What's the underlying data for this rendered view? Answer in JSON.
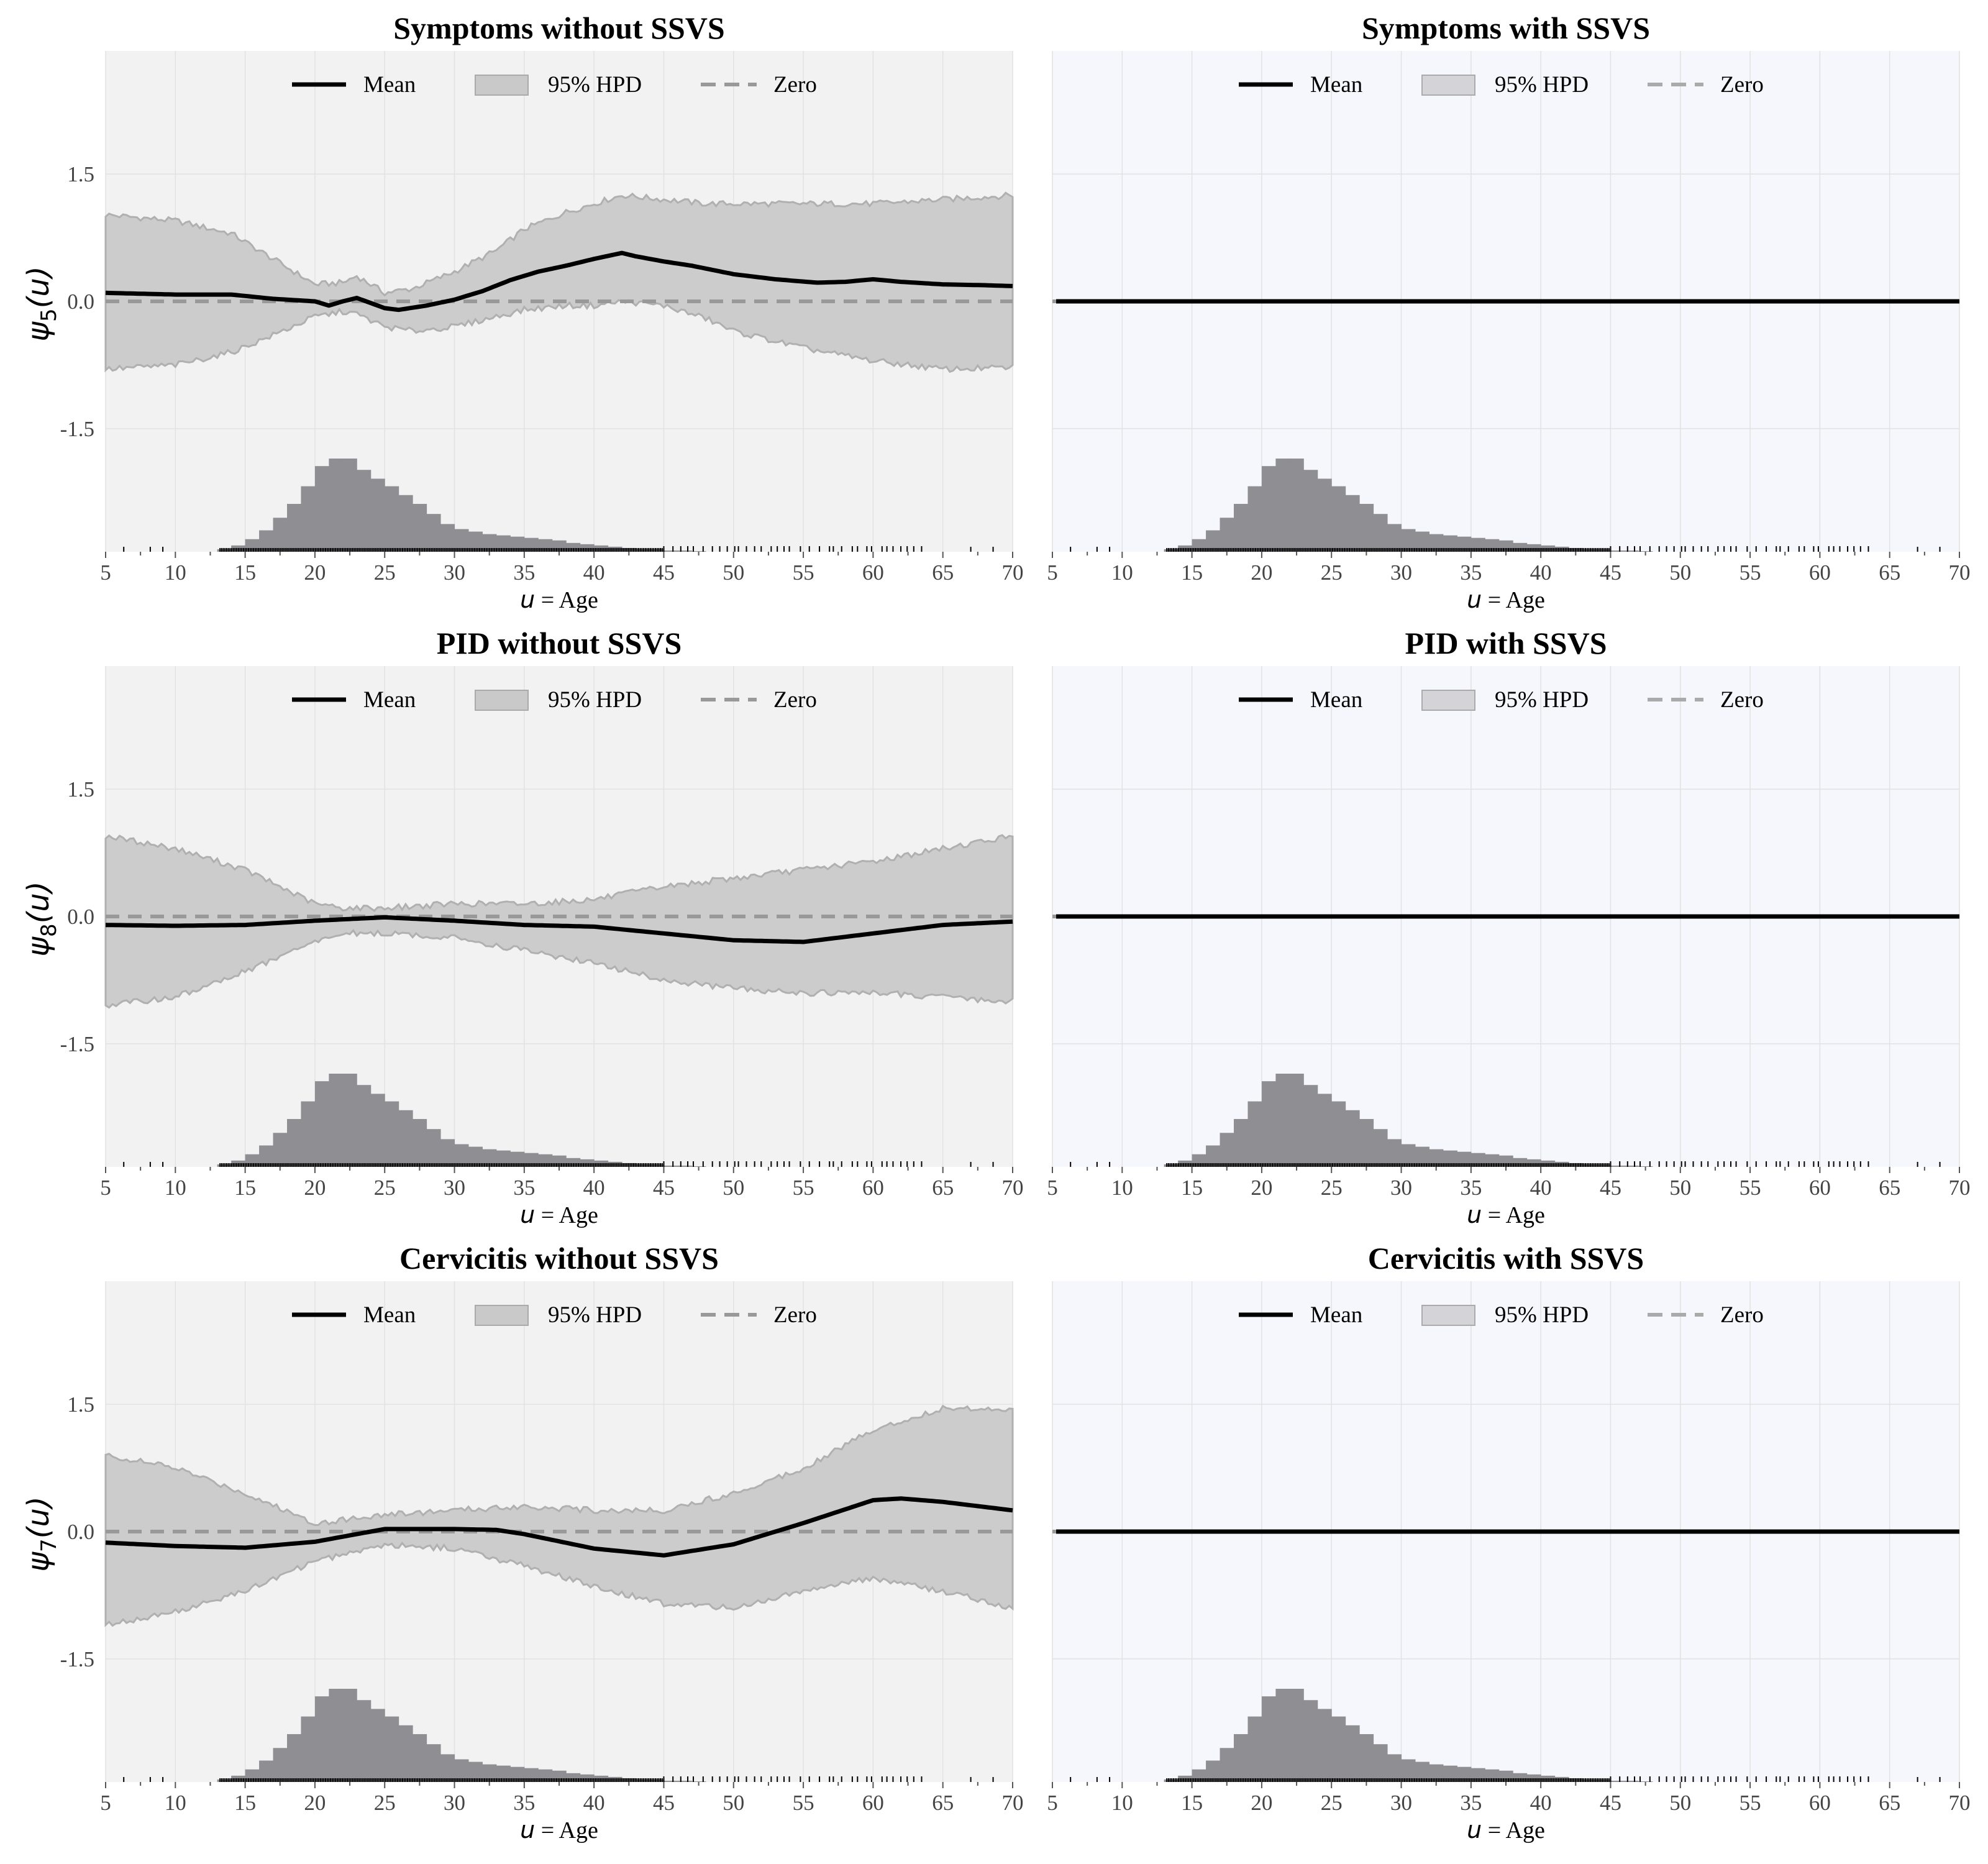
{
  "figure": {
    "layout": "3 rows x 2 columns",
    "grid": true,
    "legend_placement": "top-center",
    "colors": {
      "panel_bg_without": "#f2f2f2",
      "panel_bg_with": "#f6f7fd",
      "band": "#cccccc",
      "band_edge": "#b0b0b0",
      "mean": "#000000",
      "zero": "#999999",
      "histogram": "#8e8e93",
      "rug": "#000000"
    }
  },
  "chart_data": [
    {
      "type": "line",
      "title": "Symptoms without SSVS",
      "ylabel": "ψ5(u)",
      "ylabel_main": "ψ",
      "ylabel_sub": "5",
      "ylabel_arg": "(u)",
      "xlabel_var": "u",
      "xlabel_rest": " = Age",
      "xlim": [
        5,
        70
      ],
      "ylim": [
        -2.95,
        2.95
      ],
      "xticks": [
        "5",
        "10",
        "15",
        "20",
        "25",
        "30",
        "35",
        "40",
        "45",
        "50",
        "55",
        "60",
        "65",
        "70"
      ],
      "yticks": [
        "1.5",
        "0.0",
        "-1.5"
      ],
      "legend": [
        "Mean",
        "95% HPD",
        "Zero"
      ],
      "series": [
        {
          "name": "Mean",
          "x": [
            5,
            10,
            14,
            17,
            19,
            20,
            21,
            22,
            23,
            24,
            25,
            26,
            28,
            30,
            32,
            34,
            36,
            38,
            40,
            42,
            43,
            45,
            47,
            50,
            53,
            56,
            58,
            60,
            62,
            65,
            68,
            70
          ],
          "y": [
            0.1,
            0.08,
            0.08,
            0.03,
            0.01,
            0.0,
            -0.05,
            0.0,
            0.04,
            -0.02,
            -0.08,
            -0.1,
            -0.05,
            0.02,
            0.12,
            0.25,
            0.35,
            0.42,
            0.5,
            0.57,
            0.53,
            0.47,
            0.42,
            0.32,
            0.26,
            0.22,
            0.23,
            0.26,
            0.23,
            0.2,
            0.19,
            0.18
          ]
        },
        {
          "name": "95% HPD",
          "x": [
            5,
            10,
            14,
            17,
            20,
            22,
            23,
            25,
            27,
            30,
            33,
            35,
            38,
            40,
            42,
            45,
            48,
            50,
            55,
            60,
            65,
            70
          ],
          "lower": [
            -0.8,
            -0.75,
            -0.6,
            -0.4,
            -0.18,
            -0.12,
            -0.15,
            -0.3,
            -0.35,
            -0.3,
            -0.18,
            -0.1,
            -0.05,
            -0.05,
            0.0,
            -0.05,
            -0.2,
            -0.35,
            -0.55,
            -0.7,
            -0.8,
            -0.78
          ],
          "upper": [
            1.02,
            0.95,
            0.8,
            0.5,
            0.2,
            0.22,
            0.3,
            0.1,
            0.15,
            0.35,
            0.6,
            0.85,
            1.05,
            1.15,
            1.25,
            1.2,
            1.15,
            1.15,
            1.15,
            1.15,
            1.2,
            1.25
          ]
        },
        {
          "name": "Zero",
          "y": 0
        }
      ],
      "histogram": {
        "x_start": 13,
        "bin_width": 1,
        "heights": [
          0.02,
          0.05,
          0.1,
          0.17,
          0.27,
          0.38,
          0.52,
          0.68,
          0.74,
          0.74,
          0.65,
          0.58,
          0.52,
          0.45,
          0.38,
          0.3,
          0.22,
          0.18,
          0.16,
          0.14,
          0.13,
          0.12,
          0.11,
          0.1,
          0.09,
          0.07,
          0.06,
          0.05,
          0.04,
          0.03,
          0.02,
          0.02,
          0.01,
          0.01,
          0.005
        ]
      }
    },
    {
      "type": "line",
      "title": "Symptoms with SSVS",
      "xlabel_var": "u",
      "xlabel_rest": " = Age",
      "xlim": [
        5,
        70
      ],
      "ylim": [
        -2.95,
        2.95
      ],
      "xticks": [
        "5",
        "10",
        "15",
        "20",
        "25",
        "30",
        "35",
        "40",
        "45",
        "50",
        "55",
        "60",
        "65",
        "70"
      ],
      "yticks": [],
      "legend": [
        "Mean",
        "95% HPD",
        "Zero"
      ],
      "series": [
        {
          "name": "Mean",
          "x": [
            5,
            70
          ],
          "y": [
            0,
            0
          ]
        },
        {
          "name": "95% HPD",
          "x": [
            5,
            70
          ],
          "lower": [
            0,
            0
          ],
          "upper": [
            0,
            0
          ]
        },
        {
          "name": "Zero",
          "y": 0
        }
      ],
      "histogram": {
        "x_start": 13,
        "bin_width": 1,
        "heights": [
          0.02,
          0.05,
          0.1,
          0.17,
          0.27,
          0.38,
          0.52,
          0.68,
          0.74,
          0.74,
          0.65,
          0.58,
          0.52,
          0.45,
          0.38,
          0.3,
          0.22,
          0.18,
          0.16,
          0.14,
          0.13,
          0.12,
          0.11,
          0.1,
          0.09,
          0.07,
          0.06,
          0.05,
          0.04,
          0.03,
          0.02,
          0.02,
          0.01,
          0.01,
          0.005
        ]
      }
    },
    {
      "type": "line",
      "title": "PID without SSVS",
      "ylabel": "ψ8(u)",
      "ylabel_main": "ψ",
      "ylabel_sub": "8",
      "ylabel_arg": "(u)",
      "xlabel_var": "u",
      "xlabel_rest": " = Age",
      "xlim": [
        5,
        70
      ],
      "ylim": [
        -2.95,
        2.95
      ],
      "xticks": [
        "5",
        "10",
        "15",
        "20",
        "25",
        "30",
        "35",
        "40",
        "45",
        "50",
        "55",
        "60",
        "65",
        "70"
      ],
      "yticks": [
        "1.5",
        "0.0",
        "-1.5"
      ],
      "legend": [
        "Mean",
        "95% HPD",
        "Zero"
      ],
      "series": [
        {
          "name": "Mean",
          "x": [
            5,
            10,
            15,
            20,
            25,
            30,
            35,
            40,
            45,
            50,
            55,
            60,
            65,
            70
          ],
          "y": [
            -0.1,
            -0.11,
            -0.1,
            -0.05,
            -0.01,
            -0.05,
            -0.1,
            -0.12,
            -0.2,
            -0.28,
            -0.3,
            -0.2,
            -0.1,
            -0.06
          ]
        },
        {
          "name": "95% HPD",
          "x": [
            5,
            10,
            15,
            20,
            22,
            25,
            30,
            35,
            40,
            45,
            50,
            55,
            60,
            65,
            70
          ],
          "lower": [
            -1.05,
            -0.95,
            -0.65,
            -0.3,
            -0.2,
            -0.2,
            -0.25,
            -0.4,
            -0.55,
            -0.75,
            -0.85,
            -0.9,
            -0.9,
            -0.95,
            -1.0
          ],
          "upper": [
            0.95,
            0.8,
            0.55,
            0.15,
            0.1,
            0.1,
            0.15,
            0.15,
            0.2,
            0.35,
            0.45,
            0.55,
            0.65,
            0.8,
            0.95
          ]
        },
        {
          "name": "Zero",
          "y": 0
        }
      ],
      "histogram": {
        "x_start": 13,
        "bin_width": 1,
        "heights": [
          0.02,
          0.05,
          0.1,
          0.17,
          0.27,
          0.38,
          0.52,
          0.68,
          0.74,
          0.74,
          0.65,
          0.58,
          0.52,
          0.45,
          0.38,
          0.3,
          0.22,
          0.18,
          0.16,
          0.14,
          0.13,
          0.12,
          0.11,
          0.1,
          0.09,
          0.07,
          0.06,
          0.05,
          0.04,
          0.03,
          0.02,
          0.02,
          0.01,
          0.01,
          0.005
        ]
      }
    },
    {
      "type": "line",
      "title": "PID with SSVS",
      "xlabel_var": "u",
      "xlabel_rest": " = Age",
      "xlim": [
        5,
        70
      ],
      "ylim": [
        -2.95,
        2.95
      ],
      "xticks": [
        "5",
        "10",
        "15",
        "20",
        "25",
        "30",
        "35",
        "40",
        "45",
        "50",
        "55",
        "60",
        "65",
        "70"
      ],
      "yticks": [],
      "legend": [
        "Mean",
        "95% HPD",
        "Zero"
      ],
      "series": [
        {
          "name": "Mean",
          "x": [
            5,
            70
          ],
          "y": [
            0,
            0
          ]
        },
        {
          "name": "95% HPD",
          "x": [
            5,
            70
          ],
          "lower": [
            0,
            0
          ],
          "upper": [
            0,
            0
          ]
        },
        {
          "name": "Zero",
          "y": 0
        }
      ],
      "histogram": {
        "x_start": 13,
        "bin_width": 1,
        "heights": [
          0.02,
          0.05,
          0.1,
          0.17,
          0.27,
          0.38,
          0.52,
          0.68,
          0.74,
          0.74,
          0.65,
          0.58,
          0.52,
          0.45,
          0.38,
          0.3,
          0.22,
          0.18,
          0.16,
          0.14,
          0.13,
          0.12,
          0.11,
          0.1,
          0.09,
          0.07,
          0.06,
          0.05,
          0.04,
          0.03,
          0.02,
          0.02,
          0.01,
          0.01,
          0.005
        ]
      }
    },
    {
      "type": "line",
      "title": "Cervicitis without SSVS",
      "ylabel": "ψ7(u)",
      "ylabel_main": "ψ",
      "ylabel_sub": "7",
      "ylabel_arg": "(u)",
      "xlabel_var": "u",
      "xlabel_rest": " = Age",
      "xlim": [
        5,
        70
      ],
      "ylim": [
        -2.95,
        2.95
      ],
      "xticks": [
        "5",
        "10",
        "15",
        "20",
        "25",
        "30",
        "35",
        "40",
        "45",
        "50",
        "55",
        "60",
        "65",
        "70"
      ],
      "yticks": [
        "1.5",
        "0.0",
        "-1.5"
      ],
      "legend": [
        "Mean",
        "95% HPD",
        "Zero"
      ],
      "series": [
        {
          "name": "Mean",
          "x": [
            5,
            10,
            15,
            20,
            25,
            30,
            33,
            35,
            40,
            45,
            50,
            55,
            60,
            62,
            65,
            70
          ],
          "y": [
            -0.13,
            -0.17,
            -0.19,
            -0.12,
            0.03,
            0.03,
            0.02,
            -0.03,
            -0.2,
            -0.28,
            -0.15,
            0.1,
            0.37,
            0.39,
            0.35,
            0.25
          ]
        },
        {
          "name": "95% HPD",
          "x": [
            5,
            10,
            15,
            20,
            25,
            30,
            35,
            40,
            45,
            50,
            55,
            60,
            65,
            70
          ],
          "lower": [
            -1.1,
            -0.95,
            -0.7,
            -0.35,
            -0.15,
            -0.2,
            -0.4,
            -0.65,
            -0.85,
            -0.9,
            -0.7,
            -0.55,
            -0.7,
            -0.9
          ],
          "upper": [
            0.9,
            0.75,
            0.45,
            0.1,
            0.2,
            0.25,
            0.3,
            0.25,
            0.25,
            0.45,
            0.75,
            1.2,
            1.45,
            1.45
          ]
        },
        {
          "name": "Zero",
          "y": 0
        }
      ],
      "histogram": {
        "x_start": 13,
        "bin_width": 1,
        "heights": [
          0.02,
          0.05,
          0.1,
          0.17,
          0.27,
          0.38,
          0.52,
          0.68,
          0.74,
          0.74,
          0.65,
          0.58,
          0.52,
          0.45,
          0.38,
          0.3,
          0.22,
          0.18,
          0.16,
          0.14,
          0.13,
          0.12,
          0.11,
          0.1,
          0.09,
          0.07,
          0.06,
          0.05,
          0.04,
          0.03,
          0.02,
          0.02,
          0.01,
          0.01,
          0.005
        ]
      }
    },
    {
      "type": "line",
      "title": "Cervicitis with SSVS",
      "xlabel_var": "u",
      "xlabel_rest": " = Age",
      "xlim": [
        5,
        70
      ],
      "ylim": [
        -2.95,
        2.95
      ],
      "xticks": [
        "5",
        "10",
        "15",
        "20",
        "25",
        "30",
        "35",
        "40",
        "45",
        "50",
        "55",
        "60",
        "65",
        "70"
      ],
      "yticks": [],
      "legend": [
        "Mean",
        "95% HPD",
        "Zero"
      ],
      "series": [
        {
          "name": "Mean",
          "x": [
            5,
            70
          ],
          "y": [
            0,
            0
          ]
        },
        {
          "name": "95% HPD",
          "x": [
            5,
            70
          ],
          "lower": [
            0,
            0
          ],
          "upper": [
            0,
            0
          ]
        },
        {
          "name": "Zero",
          "y": 0
        }
      ],
      "histogram": {
        "x_start": 13,
        "bin_width": 1,
        "heights": [
          0.02,
          0.05,
          0.1,
          0.17,
          0.27,
          0.38,
          0.52,
          0.68,
          0.74,
          0.74,
          0.65,
          0.58,
          0.52,
          0.45,
          0.38,
          0.3,
          0.22,
          0.18,
          0.16,
          0.14,
          0.13,
          0.12,
          0.11,
          0.1,
          0.09,
          0.07,
          0.06,
          0.05,
          0.04,
          0.03,
          0.02,
          0.02,
          0.01,
          0.01,
          0.005
        ]
      }
    }
  ]
}
